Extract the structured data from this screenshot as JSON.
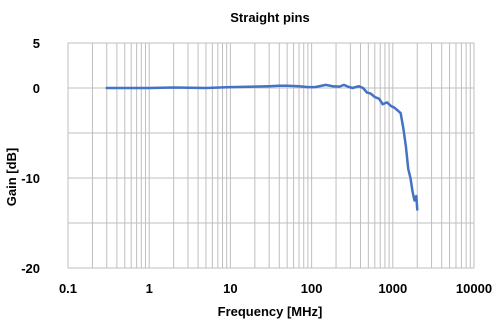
{
  "chart_data": {
    "type": "line",
    "title": "Straight pins",
    "xlabel": "Frequency [MHz]",
    "ylabel": "Gain [dB]",
    "x_scale": "log",
    "xlim": [
      0.1,
      10000
    ],
    "ylim": [
      -20,
      5
    ],
    "x_ticks": [
      0.1,
      1,
      10,
      100,
      1000,
      10000
    ],
    "x_tick_labels": [
      "0.1",
      "1",
      "10",
      "100",
      "1000",
      "10000"
    ],
    "y_ticks": [
      5,
      0,
      -10,
      -20
    ],
    "y_tick_labels": [
      "5",
      "0",
      "-10",
      "-20"
    ],
    "y_gridlines": [
      5,
      0,
      -5,
      -10,
      -15,
      -20
    ],
    "grid": true,
    "series": [
      {
        "color": "#4472c4",
        "x": [
          0.3,
          0.5,
          1,
          2,
          5,
          10,
          20,
          30,
          40,
          50,
          70,
          90,
          110,
          150,
          180,
          220,
          250,
          280,
          320,
          380,
          430,
          480,
          530,
          600,
          680,
          750,
          850,
          950,
          1050,
          1150,
          1250,
          1350,
          1450,
          1550,
          1650,
          1750,
          1850,
          1950,
          2000
        ],
        "y": [
          0.0,
          0.0,
          0.0,
          0.05,
          0.0,
          0.1,
          0.15,
          0.2,
          0.25,
          0.25,
          0.2,
          0.1,
          0.1,
          0.35,
          0.2,
          0.15,
          0.35,
          0.15,
          0.0,
          0.2,
          0.0,
          -0.5,
          -0.6,
          -1.0,
          -1.2,
          -1.8,
          -1.6,
          -2.0,
          -2.2,
          -2.5,
          -2.8,
          -4.5,
          -6.5,
          -9.0,
          -10.0,
          -11.5,
          -12.5,
          -12.0,
          -13.5
        ]
      }
    ]
  }
}
